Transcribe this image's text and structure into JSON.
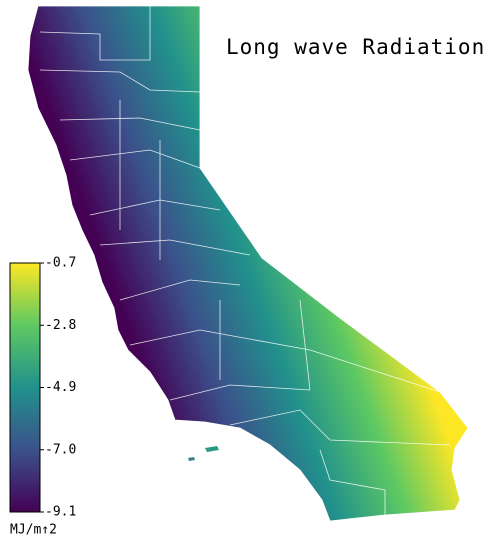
{
  "map": {
    "title": "Long wave Radiation",
    "colorbar": {
      "label": "MJ/m↑2",
      "range": [
        -9.1,
        -0.7
      ],
      "ticks": [
        -0.7,
        -2.8,
        -4.9,
        {
          "value": -7,
          "label": "-7.0"
        },
        -9.1
      ],
      "colormap": [
        "#440154",
        "#3b528b",
        "#21918c",
        "#5ec962",
        "#fde725"
      ]
    }
  }
}
